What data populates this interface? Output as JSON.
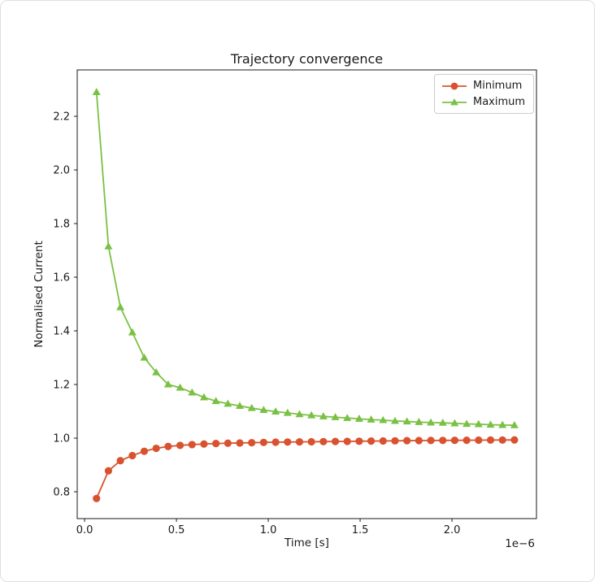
{
  "chart_data": {
    "type": "line",
    "title": "Trajectory convergence",
    "xlabel": "Time [s]",
    "ylabel": "Normalised Current",
    "x_offset_text": "1e−6",
    "x_scale": 1e-06,
    "xlim_us": [
      -0.04,
      2.46
    ],
    "ylim": [
      0.7,
      2.373
    ],
    "xticks_us": [
      0.0,
      0.5,
      1.0,
      1.5,
      2.0
    ],
    "xtick_labels": [
      "0.0",
      "0.5",
      "1.0",
      "1.5",
      "2.0"
    ],
    "yticks": [
      0.8,
      1.0,
      1.2,
      1.4,
      1.6,
      1.8,
      2.0,
      2.2
    ],
    "ytick_labels": [
      "0.8",
      "1.0",
      "1.2",
      "1.4",
      "1.6",
      "1.8",
      "2.0",
      "2.2"
    ],
    "grid": false,
    "legend_position": "upper right",
    "x_us": [
      0.065,
      0.13,
      0.195,
      0.26,
      0.325,
      0.39,
      0.455,
      0.52,
      0.585,
      0.65,
      0.715,
      0.78,
      0.845,
      0.91,
      0.975,
      1.04,
      1.105,
      1.17,
      1.235,
      1.3,
      1.365,
      1.43,
      1.495,
      1.56,
      1.625,
      1.69,
      1.755,
      1.82,
      1.885,
      1.95,
      2.015,
      2.08,
      2.145,
      2.21,
      2.275,
      2.34
    ],
    "series": [
      {
        "name": "Minimum",
        "color": "#d9522f",
        "marker": "circle",
        "values": [
          0.775,
          0.878,
          0.916,
          0.935,
          0.951,
          0.962,
          0.969,
          0.973,
          0.976,
          0.978,
          0.98,
          0.981,
          0.982,
          0.983,
          0.984,
          0.985,
          0.9855,
          0.986,
          0.9865,
          0.987,
          0.9875,
          0.988,
          0.9885,
          0.989,
          0.9895,
          0.99,
          0.9905,
          0.991,
          0.9913,
          0.9916,
          0.9919,
          0.9922,
          0.9925,
          0.9928,
          0.993,
          0.9932
        ]
      },
      {
        "name": "Maximum",
        "color": "#7ac143",
        "marker": "triangle",
        "values": [
          2.29,
          1.715,
          1.488,
          1.394,
          1.3,
          1.245,
          1.2,
          1.188,
          1.17,
          1.152,
          1.138,
          1.128,
          1.12,
          1.112,
          1.105,
          1.099,
          1.094,
          1.089,
          1.085,
          1.081,
          1.078,
          1.075,
          1.072,
          1.069,
          1.067,
          1.064,
          1.062,
          1.06,
          1.058,
          1.057,
          1.055,
          1.053,
          1.052,
          1.05,
          1.049,
          1.048
        ]
      }
    ],
    "axes_color": "#1a1a1a"
  }
}
